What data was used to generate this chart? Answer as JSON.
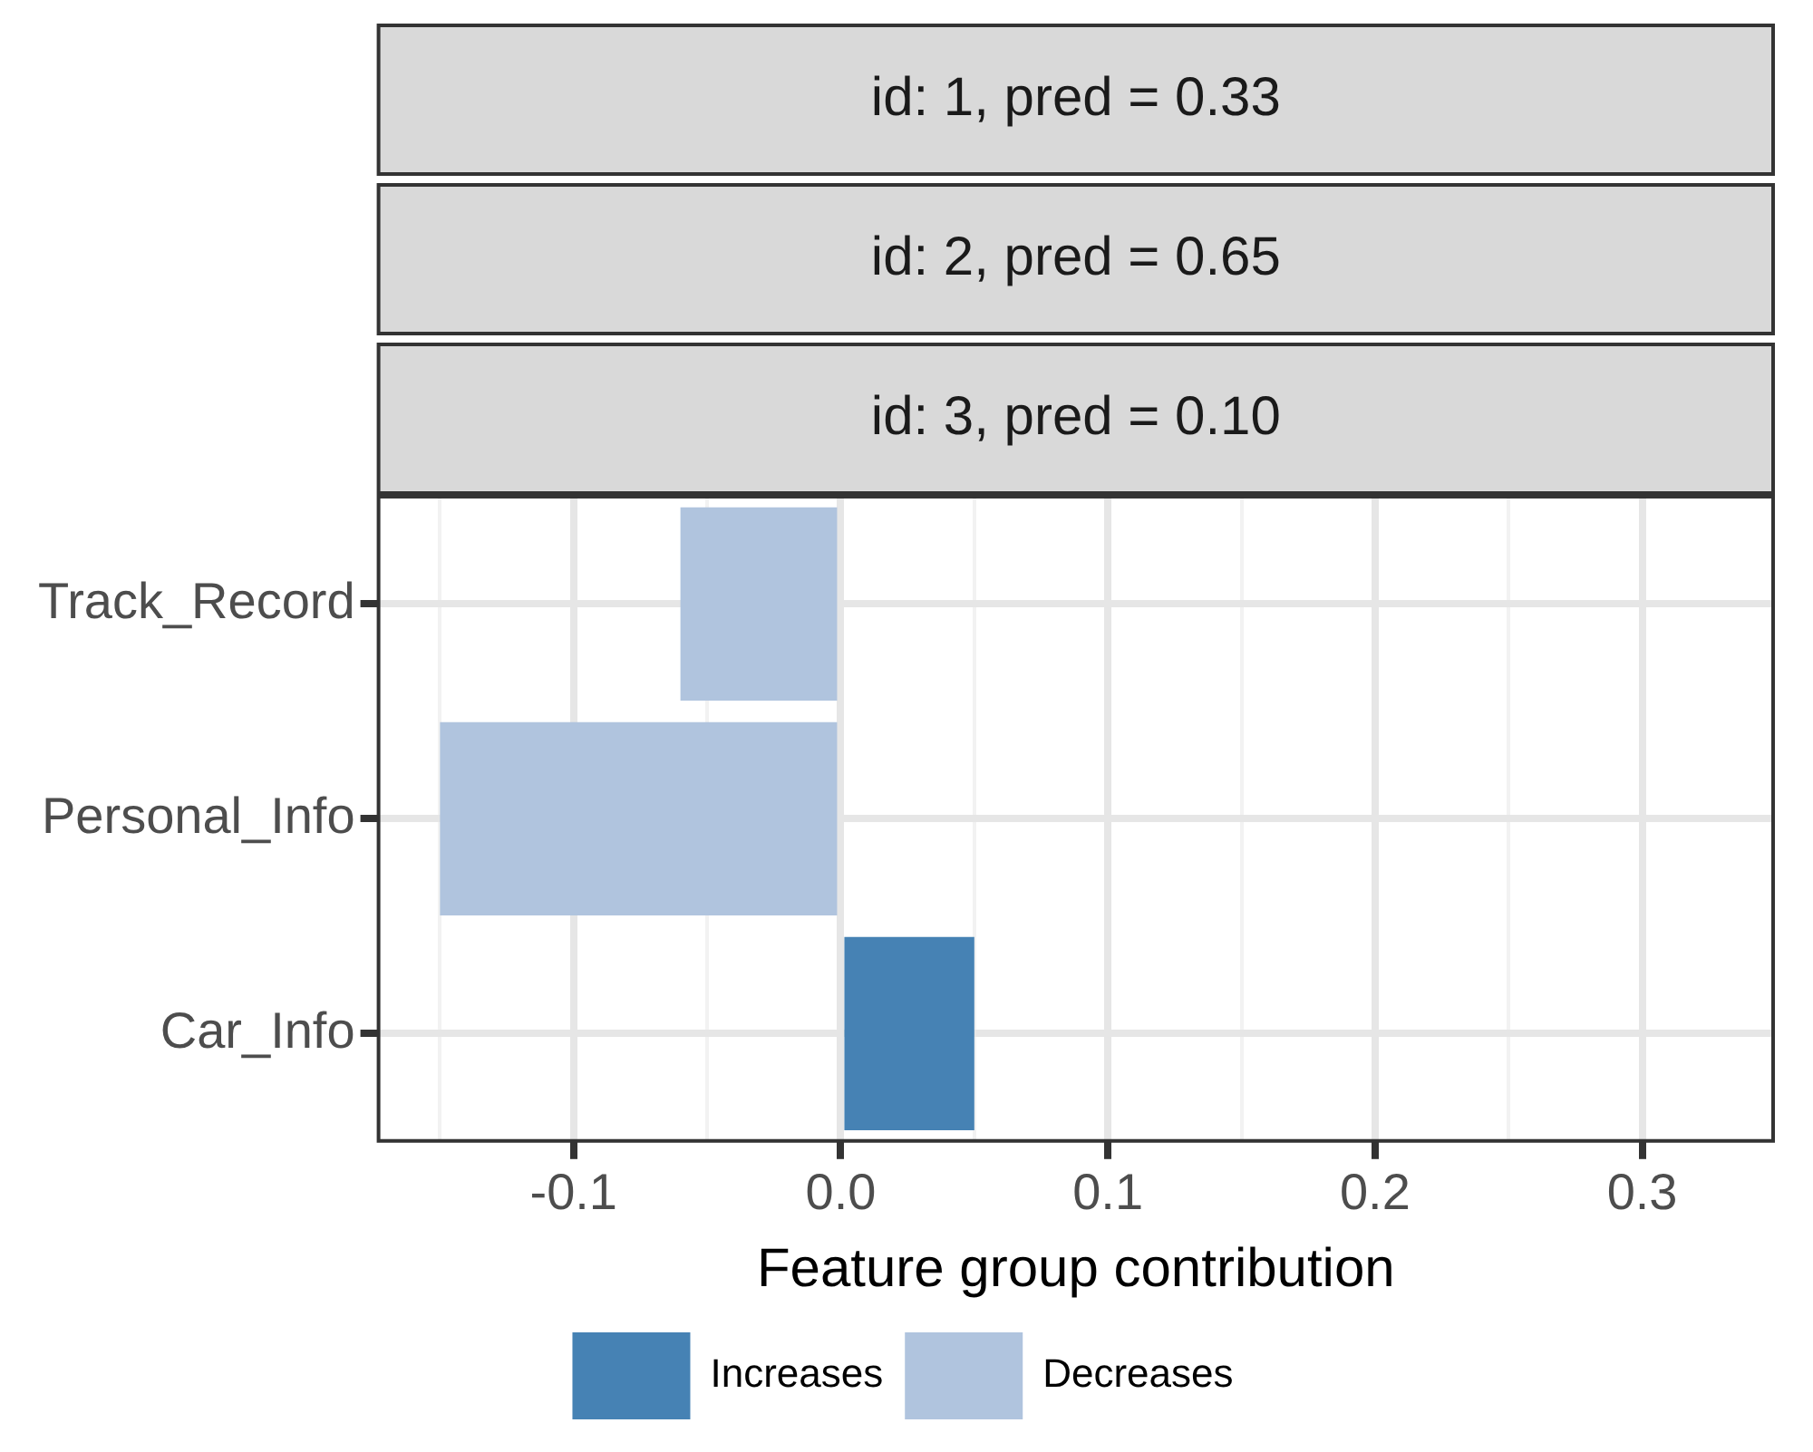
{
  "chart_data": {
    "type": "bar",
    "orientation": "horizontal",
    "annotations": [
      "id: 1, pred = 0.33",
      "id: 2, pred = 0.65",
      "id: 3, pred = 0.10"
    ],
    "xlabel": "Feature group contribution",
    "categories": [
      "Track_Record",
      "Personal_Info",
      "Car_Info"
    ],
    "series": [
      {
        "name": "Increases",
        "color": "#4682b4",
        "values": [
          null,
          null,
          0.05
        ]
      },
      {
        "name": "Decreases",
        "color": "#b0c4de",
        "values": [
          -0.06,
          -0.15,
          null
        ]
      }
    ],
    "xlim": [
      -0.173,
      0.349
    ],
    "xticks": [
      {
        "value": -0.15,
        "label": null
      },
      -0.1,
      {
        "value": -0.05,
        "label": null
      },
      {
        "value": 0,
        "label": "0.0"
      },
      {
        "value": 0.05,
        "label": null
      },
      0.1,
      {
        "value": 0.15,
        "label": null
      },
      0.2,
      {
        "value": 0.25,
        "label": null
      },
      0.3
    ],
    "grid": true,
    "legend": "bottom"
  }
}
